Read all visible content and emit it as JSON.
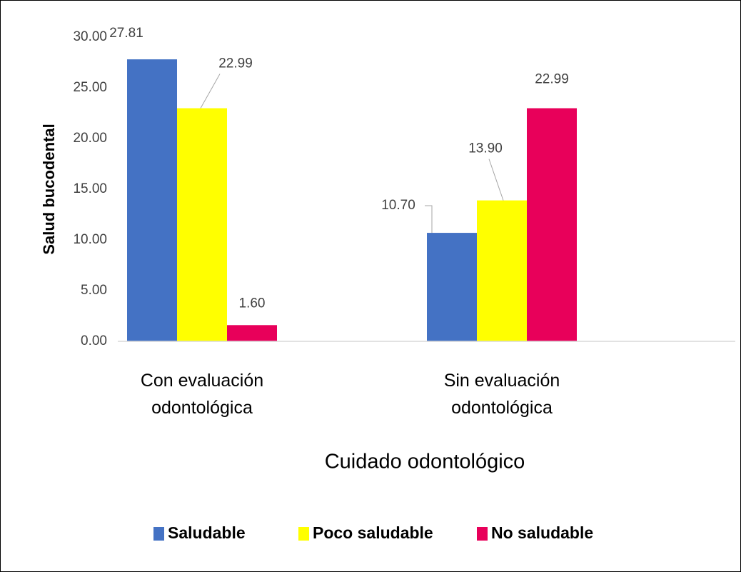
{
  "chart_data": {
    "type": "bar",
    "categories": [
      "Con evaluación odontológica",
      "Sin evaluación odontológica"
    ],
    "series": [
      {
        "name": "Saludable",
        "color": "#4472c4",
        "values": [
          27.81,
          10.7
        ],
        "value_labels": [
          "27.81",
          "10.70"
        ]
      },
      {
        "name": "Poco saludable",
        "color": "#ffff00",
        "values": [
          22.99,
          13.9
        ],
        "value_labels": [
          "22.99",
          "13.90"
        ]
      },
      {
        "name": "No saludable",
        "color": "#e8005a",
        "values": [
          1.6,
          22.99
        ],
        "value_labels": [
          "1.60",
          "22.99"
        ]
      }
    ],
    "y_label": "Salud bucodental",
    "x_label": "Cuidado odontológico",
    "ylim": [
      0,
      30
    ],
    "yticks": [
      {
        "value": 0,
        "label": "0.00"
      },
      {
        "value": 5,
        "label": "5.00"
      },
      {
        "value": 10,
        "label": "10.00"
      },
      {
        "value": 15,
        "label": "15.00"
      },
      {
        "value": 20,
        "label": "20.00"
      },
      {
        "value": 25,
        "label": "25.00"
      },
      {
        "value": 30,
        "label": "30.00"
      }
    ],
    "grid": false,
    "legend": "bottom"
  }
}
